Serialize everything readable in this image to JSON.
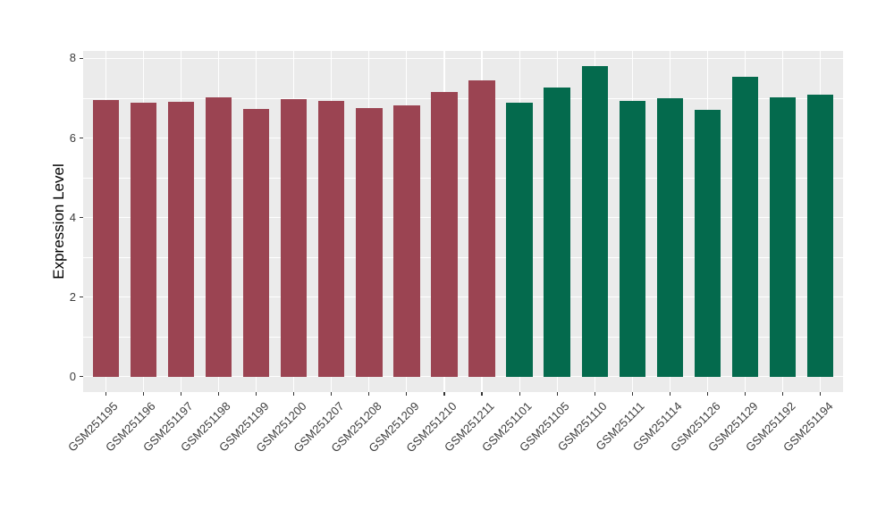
{
  "chart_data": {
    "type": "bar",
    "title": "",
    "xlabel": "",
    "ylabel": "Expression Level",
    "categories": [
      "GSM251195",
      "GSM251196",
      "GSM251197",
      "GSM251198",
      "GSM251199",
      "GSM251200",
      "GSM251207",
      "GSM251208",
      "GSM251209",
      "GSM251210",
      "GSM251211",
      "GSM251101",
      "GSM251105",
      "GSM251110",
      "GSM251111",
      "GSM251114",
      "GSM251126",
      "GSM251129",
      "GSM251192",
      "GSM251194"
    ],
    "values": [
      6.95,
      6.88,
      6.91,
      7.03,
      6.74,
      6.97,
      6.93,
      6.76,
      6.82,
      7.15,
      7.44,
      6.88,
      7.26,
      7.8,
      6.94,
      6.99,
      6.7,
      7.53,
      7.02,
      7.1
    ],
    "groups": [
      "group1",
      "group1",
      "group1",
      "group1",
      "group1",
      "group1",
      "group1",
      "group1",
      "group1",
      "group1",
      "group1",
      "group2",
      "group2",
      "group2",
      "group2",
      "group2",
      "group2",
      "group2",
      "group2",
      "group2"
    ],
    "group_colors": {
      "group1": "#9B4452",
      "group2": "#046A4D"
    },
    "yticks": [
      0,
      2,
      4,
      6,
      8
    ],
    "yticks_minor": [
      1,
      3,
      5,
      7
    ],
    "ylim": [
      0,
      8
    ],
    "ylim_expanded": [
      -0.39,
      8.19
    ],
    "x_expand": 0.6,
    "bar_width_units": 0.7,
    "grid": "on",
    "legend": "none",
    "background": "#FFFFFF",
    "panel_bg": "#EBEBEB",
    "grid_color": "#FFFFFF",
    "tick_color": "#333333",
    "axis_text_color": "#3D3D3D",
    "axis_title_color": "#000000"
  }
}
